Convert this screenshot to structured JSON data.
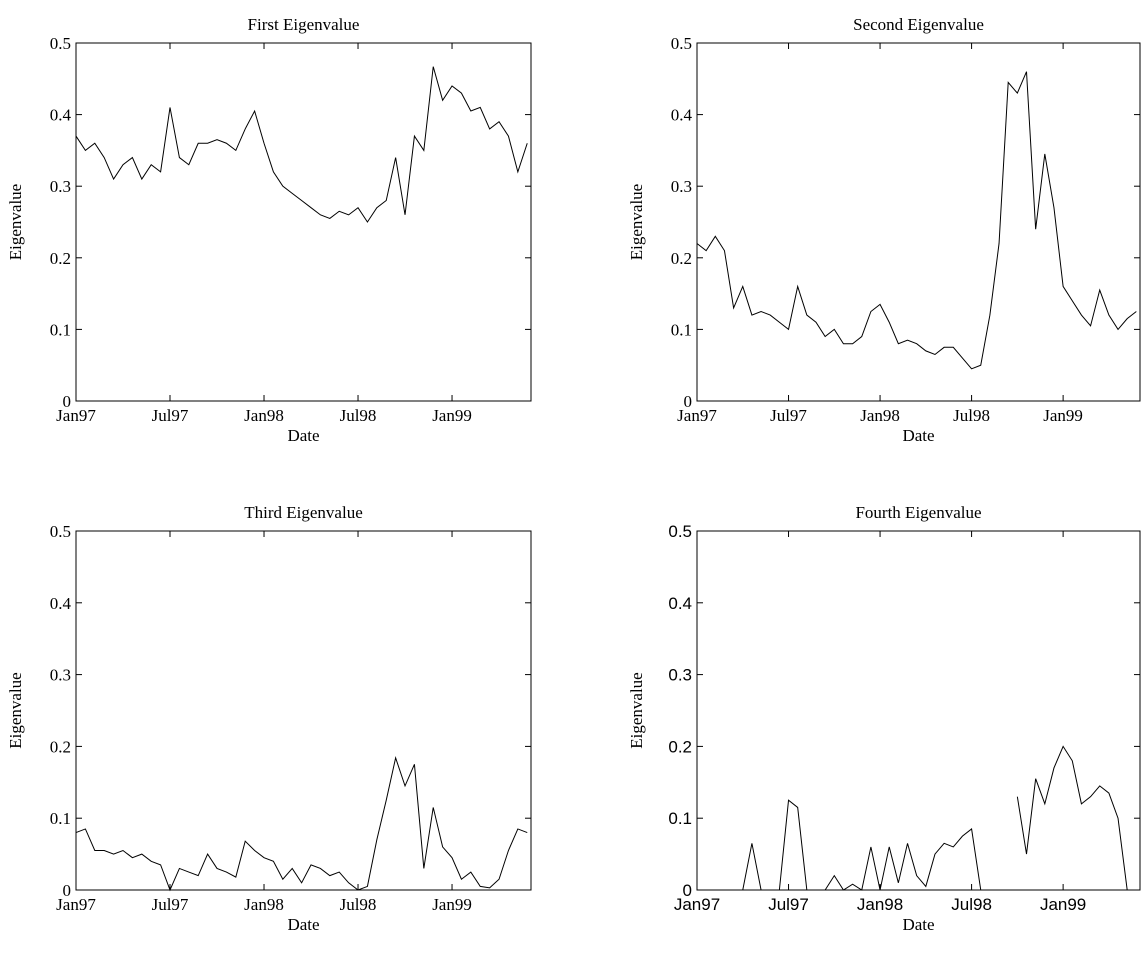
{
  "chart_data": [
    {
      "type": "line",
      "title": "First Eigenvalue",
      "xlabel": "Date",
      "ylabel": "Eigenvalue",
      "color": "#000000",
      "x": [
        1997,
        1997.05,
        1997.1,
        1997.15,
        1997.2,
        1997.25,
        1997.3,
        1997.35,
        1997.4,
        1997.45,
        1997.5,
        1997.55,
        1997.6,
        1997.65,
        1997.7,
        1997.75,
        1997.8,
        1997.85,
        1997.9,
        1997.95,
        1998,
        1998.05,
        1998.1,
        1998.15,
        1998.2,
        1998.25,
        1998.3,
        1998.35,
        1998.4,
        1998.45,
        1998.5,
        1998.55,
        1998.6,
        1998.65,
        1998.7,
        1998.75,
        1998.8,
        1998.85,
        1998.9,
        1998.95,
        1999,
        1999.05,
        1999.1,
        1999.15,
        1999.2,
        1999.25,
        1999.3,
        1999.35,
        1999.4
      ],
      "values": [
        0.37,
        0.35,
        0.36,
        0.34,
        0.31,
        0.33,
        0.34,
        0.31,
        0.33,
        0.32,
        0.41,
        0.34,
        0.33,
        0.36,
        0.36,
        0.365,
        0.36,
        0.35,
        0.38,
        0.405,
        0.36,
        0.32,
        0.3,
        0.29,
        0.28,
        0.27,
        0.26,
        0.255,
        0.265,
        0.26,
        0.27,
        0.25,
        0.27,
        0.28,
        0.34,
        0.26,
        0.37,
        0.35,
        0.467,
        0.42,
        0.44,
        0.43,
        0.405,
        0.41,
        0.38,
        0.39,
        0.37,
        0.32,
        0.36
      ],
      "xlim": [
        1997,
        1999.42
      ],
      "ylim": [
        0,
        0.5
      ],
      "xticks": [
        {
          "value": 1997,
          "label": "Jan97"
        },
        {
          "value": 1997.5,
          "label": "Jul97"
        },
        {
          "value": 1998,
          "label": "Jan98"
        },
        {
          "value": 1998.5,
          "label": "Jul98"
        },
        {
          "value": 1999,
          "label": "Jan99"
        }
      ],
      "yticks": [
        0,
        0.1,
        0.2,
        0.3,
        0.4,
        0.5
      ]
    },
    {
      "type": "line",
      "title": "Second Eigenvalue",
      "xlabel": "Date",
      "ylabel": "Eigenvalue",
      "color": "#000000",
      "x": [
        1997,
        1997.05,
        1997.1,
        1997.15,
        1997.2,
        1997.25,
        1997.3,
        1997.35,
        1997.4,
        1997.45,
        1997.5,
        1997.55,
        1997.6,
        1997.65,
        1997.7,
        1997.75,
        1997.8,
        1997.85,
        1997.9,
        1997.95,
        1998,
        1998.05,
        1998.1,
        1998.15,
        1998.2,
        1998.25,
        1998.3,
        1998.35,
        1998.4,
        1998.45,
        1998.5,
        1998.55,
        1998.6,
        1998.65,
        1998.7,
        1998.75,
        1998.8,
        1998.85,
        1998.9,
        1998.95,
        1999,
        1999.05,
        1999.1,
        1999.15,
        1999.2,
        1999.25,
        1999.3,
        1999.35,
        1999.4
      ],
      "values": [
        0.22,
        0.21,
        0.23,
        0.21,
        0.13,
        0.16,
        0.12,
        0.125,
        0.12,
        0.11,
        0.1,
        0.16,
        0.12,
        0.11,
        0.09,
        0.1,
        0.08,
        0.08,
        0.09,
        0.125,
        0.135,
        0.11,
        0.08,
        0.085,
        0.08,
        0.07,
        0.065,
        0.075,
        0.075,
        0.06,
        0.045,
        0.05,
        0.12,
        0.22,
        0.445,
        0.43,
        0.46,
        0.24,
        0.345,
        0.27,
        0.16,
        0.14,
        0.12,
        0.105,
        0.155,
        0.12,
        0.1,
        0.115,
        0.125
      ],
      "xlim": [
        1997,
        1999.42
      ],
      "ylim": [
        0,
        0.5
      ],
      "xticks": [
        {
          "value": 1997,
          "label": "Jan97"
        },
        {
          "value": 1997.5,
          "label": "Jul97"
        },
        {
          "value": 1998,
          "label": "Jan98"
        },
        {
          "value": 1998.5,
          "label": "Jul98"
        },
        {
          "value": 1999,
          "label": "Jan99"
        }
      ],
      "yticks": [
        0,
        0.1,
        0.2,
        0.3,
        0.4,
        0.5
      ]
    },
    {
      "type": "line",
      "title": "Third Eigenvalue",
      "xlabel": "Date",
      "ylabel": "Eigenvalue",
      "color": "#000000",
      "x": [
        1997,
        1997.05,
        1997.1,
        1997.15,
        1997.2,
        1997.25,
        1997.3,
        1997.35,
        1997.4,
        1997.45,
        1997.5,
        1997.55,
        1997.6,
        1997.65,
        1997.7,
        1997.75,
        1997.8,
        1997.85,
        1997.9,
        1997.95,
        1998,
        1998.05,
        1998.1,
        1998.15,
        1998.2,
        1998.25,
        1998.3,
        1998.35,
        1998.4,
        1998.45,
        1998.5,
        1998.55,
        1998.6,
        1998.65,
        1998.7,
        1998.75,
        1998.8,
        1998.85,
        1998.9,
        1998.95,
        1999,
        1999.05,
        1999.1,
        1999.15,
        1999.2,
        1999.25,
        1999.3,
        1999.35,
        1999.4
      ],
      "values": [
        0.08,
        0.085,
        0.055,
        0.055,
        0.05,
        0.055,
        0.045,
        0.05,
        0.04,
        0.035,
        0,
        0.03,
        0.025,
        0.02,
        0.05,
        0.03,
        0.025,
        0.018,
        0.068,
        0.055,
        0.045,
        0.04,
        0.015,
        0.03,
        0.01,
        0.035,
        0.03,
        0.02,
        0.025,
        0.01,
        0,
        0.005,
        0.07,
        0.125,
        0.184,
        0.145,
        0.175,
        0.03,
        0.115,
        0.06,
        0.045,
        0.015,
        0.025,
        0.005,
        0.003,
        0.015,
        0.055,
        0.085,
        0.08
      ],
      "xlim": [
        1997,
        1999.42
      ],
      "ylim": [
        0,
        0.5
      ],
      "xticks": [
        {
          "value": 1997,
          "label": "Jan97"
        },
        {
          "value": 1997.5,
          "label": "Jul97"
        },
        {
          "value": 1998,
          "label": "Jan98"
        },
        {
          "value": 1998.5,
          "label": "Jul98"
        },
        {
          "value": 1999,
          "label": "Jan99"
        }
      ],
      "yticks": [
        0,
        0.1,
        0.2,
        0.3,
        0.4,
        0.5
      ]
    },
    {
      "type": "line",
      "title": "Fourth Eigenvalue",
      "xlabel": "Date",
      "ylabel": "Eigenvalue",
      "color": "#000000",
      "x": [
        1997,
        1997.05,
        1997.1,
        1997.15,
        1997.2,
        1997.25,
        1997.3,
        1997.35,
        1997.4,
        1997.45,
        1997.5,
        1997.55,
        1997.6,
        1997.65,
        1997.7,
        1997.75,
        1997.8,
        1997.85,
        1997.9,
        1997.95,
        1998,
        1998.05,
        1998.1,
        1998.15,
        1998.2,
        1998.25,
        1998.3,
        1998.35,
        1998.4,
        1998.45,
        1998.5,
        1998.55,
        1998.6,
        1998.65,
        1998.7,
        1998.75,
        1998.8,
        1998.85,
        1998.9,
        1998.95,
        1999,
        1999.05,
        1999.1,
        1999.15,
        1999.2,
        1999.25,
        1999.3,
        1999.35,
        1999.4
      ],
      "values": [
        null,
        null,
        null,
        null,
        null,
        0,
        0.065,
        0,
        null,
        0,
        0.125,
        0.115,
        0,
        null,
        0,
        0.02,
        0,
        0.008,
        0,
        0.06,
        0,
        0.06,
        0.01,
        0.065,
        0.02,
        0.005,
        0.05,
        0.065,
        0.06,
        0.075,
        0.085,
        0,
        null,
        null,
        null,
        0.13,
        0.05,
        0.155,
        0.12,
        0.17,
        0.2,
        0.18,
        0.12,
        0.13,
        0.145,
        0.135,
        0.1,
        0,
        null
      ],
      "xlim": [
        1997,
        1999.42
      ],
      "ylim": [
        0,
        0.5
      ],
      "xticks": [
        {
          "value": 1997,
          "label": "Jan97"
        },
        {
          "value": 1997.5,
          "label": "Jul97"
        },
        {
          "value": 1998,
          "label": "Jan98"
        },
        {
          "value": 1998.5,
          "label": "Jul98"
        },
        {
          "value": 1999,
          "label": "Jan99"
        }
      ],
      "yticks": [
        0,
        0.1,
        0.2,
        0.3,
        0.4,
        0.5
      ]
    }
  ]
}
